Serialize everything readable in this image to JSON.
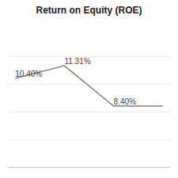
{
  "chart_data": {
    "type": "line",
    "title": "Return on Equity (ROE)",
    "x": [
      0,
      1,
      2,
      3
    ],
    "values": [
      10.4,
      11.31,
      8.4,
      8.4
    ],
    "color": "#808080",
    "xlim": [
      -0.15,
      3.15
    ],
    "ylim": [
      4.0,
      14.0
    ],
    "yticks": [
      4,
      6,
      8,
      10,
      12,
      14
    ],
    "grid": true,
    "tick_labels": false,
    "data_labels": true,
    "value_labels": [
      "10.40%",
      "11.31%",
      "8.40%",
      null
    ]
  }
}
